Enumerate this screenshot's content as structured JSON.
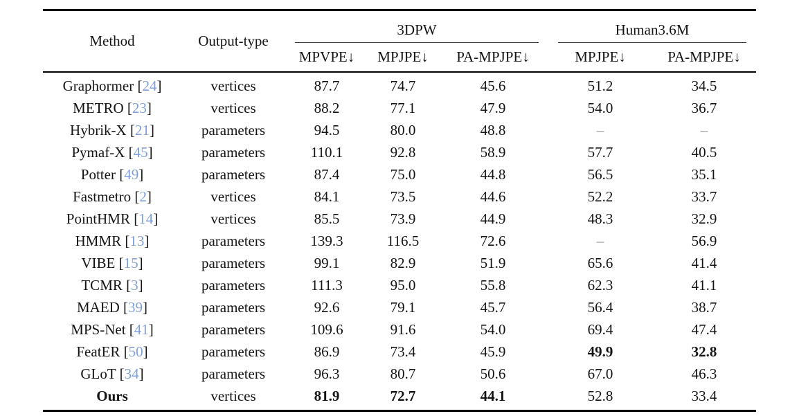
{
  "colors": {
    "citation_blue": "#7e9fdc",
    "dash_gray": "#8a8a8a",
    "rule_black": "#000000"
  },
  "table": {
    "header": {
      "method": "Method",
      "output_type": "Output-type",
      "group_3dpw": "3DPW",
      "group_h36m": "Human3.6M",
      "metrics": [
        "MPVPE↓",
        "MPJPE↓",
        "PA-MPJPE↓",
        "MPJPE↓",
        "PA-MPJPE↓"
      ]
    },
    "rows": [
      {
        "method": "Graphormer",
        "cite": "24",
        "output": "vertices",
        "values": [
          "87.7",
          "74.7",
          "45.6",
          "51.2",
          "34.5"
        ],
        "bold_method": false,
        "bold_values": []
      },
      {
        "method": "METRO",
        "cite": "23",
        "output": "vertices",
        "values": [
          "88.2",
          "77.1",
          "47.9",
          "54.0",
          "36.7"
        ],
        "bold_method": false,
        "bold_values": []
      },
      {
        "method": "Hybrik-X",
        "cite": "21",
        "output": "parameters",
        "values": [
          "94.5",
          "80.0",
          "48.8",
          "–",
          "–"
        ],
        "bold_method": false,
        "bold_values": []
      },
      {
        "method": "Pymaf-X",
        "cite": "45",
        "output": "parameters",
        "values": [
          "110.1",
          "92.8",
          "58.9",
          "57.7",
          "40.5"
        ],
        "bold_method": false,
        "bold_values": []
      },
      {
        "method": "Potter",
        "cite": "49",
        "output": "parameters",
        "values": [
          "87.4",
          "75.0",
          "44.8",
          "56.5",
          "35.1"
        ],
        "bold_method": false,
        "bold_values": []
      },
      {
        "method": "Fastmetro",
        "cite": "2",
        "output": "vertices",
        "values": [
          "84.1",
          "73.5",
          "44.6",
          "52.2",
          "33.7"
        ],
        "bold_method": false,
        "bold_values": []
      },
      {
        "method": "PointHMR",
        "cite": "14",
        "output": "vertices",
        "values": [
          "85.5",
          "73.9",
          "44.9",
          "48.3",
          "32.9"
        ],
        "bold_method": false,
        "bold_values": []
      },
      {
        "method": "HMMR",
        "cite": "13",
        "output": "parameters",
        "values": [
          "139.3",
          "116.5",
          "72.6",
          "–",
          "56.9"
        ],
        "bold_method": false,
        "bold_values": []
      },
      {
        "method": "VIBE",
        "cite": "15",
        "output": "parameters",
        "values": [
          "99.1",
          "82.9",
          "51.9",
          "65.6",
          "41.4"
        ],
        "bold_method": false,
        "bold_values": []
      },
      {
        "method": "TCMR",
        "cite": "3",
        "output": "parameters",
        "values": [
          "111.3",
          "95.0",
          "55.8",
          "62.3",
          "41.1"
        ],
        "bold_method": false,
        "bold_values": []
      },
      {
        "method": "MAED",
        "cite": "39",
        "output": "parameters",
        "values": [
          "92.6",
          "79.1",
          "45.7",
          "56.4",
          "38.7"
        ],
        "bold_method": false,
        "bold_values": []
      },
      {
        "method": "MPS-Net",
        "cite": "41",
        "output": "parameters",
        "values": [
          "109.6",
          "91.6",
          "54.0",
          "69.4",
          "47.4"
        ],
        "bold_method": false,
        "bold_values": []
      },
      {
        "method": "FeatER",
        "cite": "50",
        "output": "parameters",
        "values": [
          "86.9",
          "73.4",
          "45.9",
          "49.9",
          "32.8"
        ],
        "bold_method": false,
        "bold_values": [
          3,
          4
        ]
      },
      {
        "method": "GLoT",
        "cite": "34",
        "output": "parameters",
        "values": [
          "96.3",
          "80.7",
          "50.6",
          "67.0",
          "46.3"
        ],
        "bold_method": false,
        "bold_values": []
      },
      {
        "method": "Ours",
        "cite": "",
        "output": "vertices",
        "values": [
          "81.9",
          "72.7",
          "44.1",
          "52.8",
          "33.4"
        ],
        "bold_method": true,
        "bold_values": [
          0,
          1,
          2
        ]
      }
    ]
  }
}
